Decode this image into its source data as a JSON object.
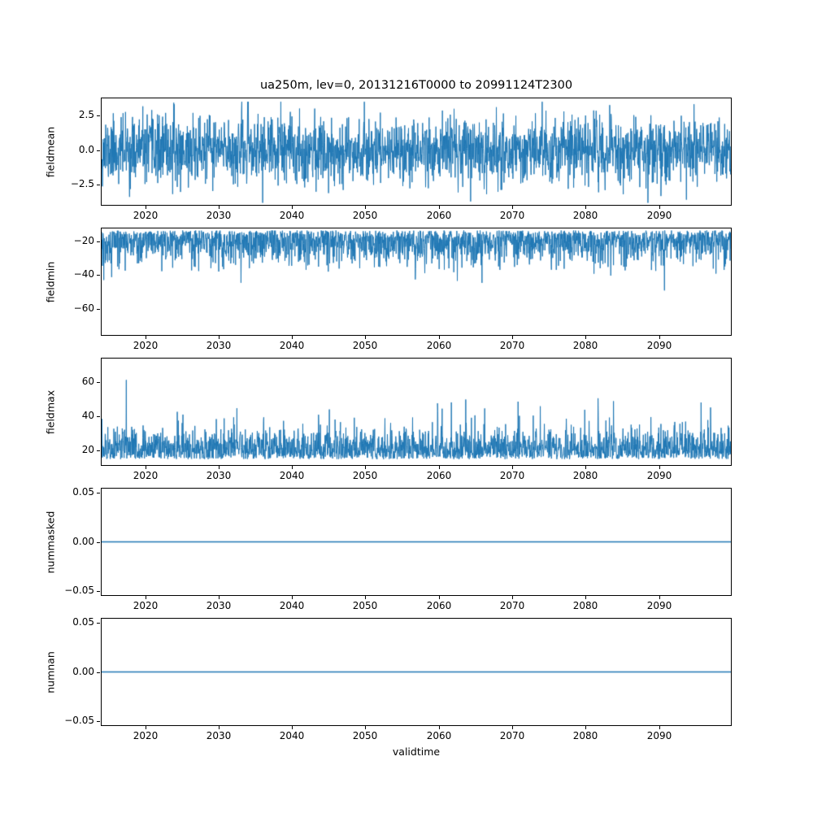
{
  "title": "ua250m, lev=0, 20131216T0000 to 20991124T2300",
  "xlabel": "validtime",
  "line_color": "#1f77b4",
  "chart_data": {
    "type": "line",
    "title": "ua250m, lev=0, 20131216T0000 to 20991124T2300",
    "x": {
      "label": "validtime",
      "lim": [
        2013.96,
        2099.9
      ],
      "ticks": [
        {
          "value": 2020,
          "label": "2020"
        },
        {
          "value": 2030,
          "label": "2030"
        },
        {
          "value": 2040,
          "label": "2040"
        },
        {
          "value": 2050,
          "label": "2050"
        },
        {
          "value": 2060,
          "label": "2060"
        },
        {
          "value": 2070,
          "label": "2070"
        },
        {
          "value": 2080,
          "label": "2080"
        },
        {
          "value": 2090,
          "label": "2090"
        }
      ],
      "start": "20131216T0000",
      "end": "20991124T2300"
    },
    "subplots": [
      {
        "ylabel": "fieldmean",
        "ylim": [
          -4.0,
          3.8
        ],
        "yticks": [
          {
            "value": 2.5,
            "label": "2.5"
          },
          {
            "value": 0.0,
            "label": "0.0"
          },
          {
            "value": -2.5,
            "label": "−2.5"
          }
        ],
        "series": {
          "kind": "gaussian",
          "mean": 0,
          "std": 1.2,
          "clip_min": -3.85,
          "clip_max": 3.55,
          "seed": 11
        }
      },
      {
        "ylabel": "fieldmin",
        "ylim": [
          -76,
          -12
        ],
        "yticks": [
          {
            "value": -20,
            "label": "−20"
          },
          {
            "value": -40,
            "label": "−40"
          },
          {
            "value": -60,
            "label": "−60"
          }
        ],
        "series": {
          "kind": "spiky-down",
          "base": -13.2,
          "scale": 9.5,
          "spike_p": 0.004,
          "spike_extra": 24,
          "floor": -72.5,
          "seed": 22
        }
      },
      {
        "ylabel": "fieldmax",
        "ylim": [
          11,
          74
        ],
        "yticks": [
          {
            "value": 60,
            "label": "60"
          },
          {
            "value": 40,
            "label": "40"
          },
          {
            "value": 20,
            "label": "20"
          }
        ],
        "series": {
          "kind": "spiky-up",
          "base": 14.5,
          "scale": 8.8,
          "spike_p": 0.005,
          "spike_extra": 22,
          "ceil": 72,
          "seed": 33
        }
      },
      {
        "ylabel": "nummasked",
        "ylim": [
          -0.055,
          0.055
        ],
        "yticks": [
          {
            "value": 0.05,
            "label": "0.05"
          },
          {
            "value": 0.0,
            "label": "0.00"
          },
          {
            "value": -0.05,
            "label": "−0.05"
          }
        ],
        "series": {
          "kind": "constant",
          "value": 0,
          "seed": 44
        }
      },
      {
        "ylabel": "numnan",
        "ylim": [
          -0.055,
          0.055
        ],
        "yticks": [
          {
            "value": 0.05,
            "label": "0.05"
          },
          {
            "value": 0.0,
            "label": "0.00"
          },
          {
            "value": -0.05,
            "label": "−0.05"
          }
        ],
        "series": {
          "kind": "constant",
          "value": 0,
          "seed": 55
        }
      }
    ]
  }
}
